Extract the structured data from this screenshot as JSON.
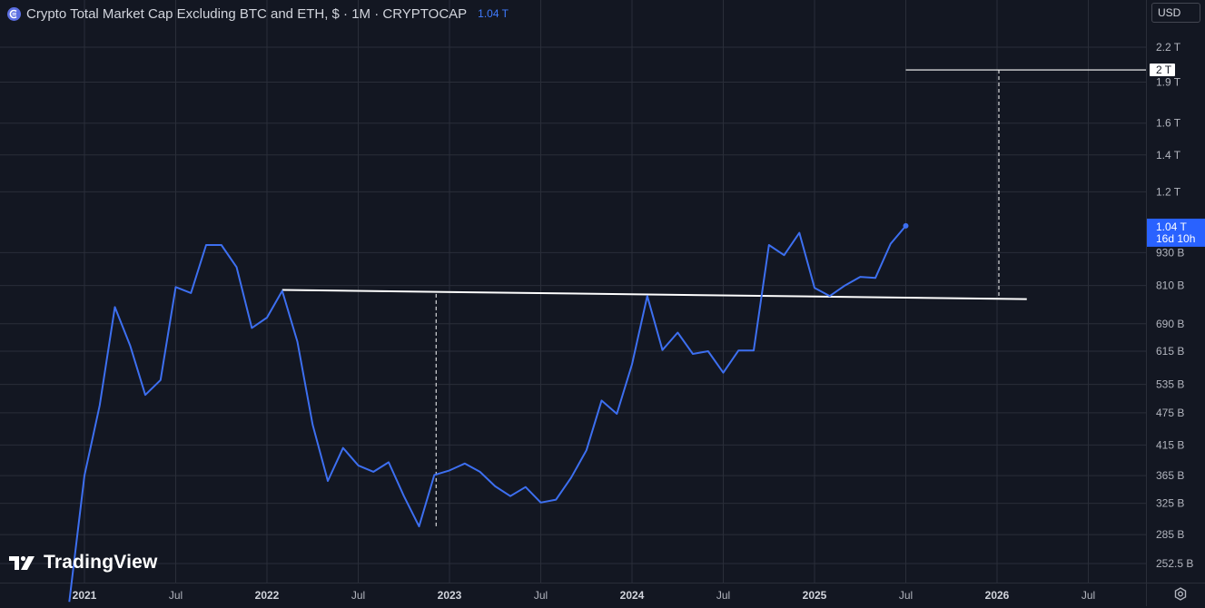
{
  "header": {
    "title": "Crypto Total Market Cap Excluding BTC and ETH, $ · 1M · CRYPTOCAP",
    "last_value": "1.04 T"
  },
  "currency_selector": {
    "label": "USD"
  },
  "watermark": {
    "text": "TradingView",
    "icon": "tradingview-logo-icon"
  },
  "price_label": {
    "value": "1.04 T",
    "countdown": "16d 10h"
  },
  "target_label": "2 T",
  "colors": {
    "background": "#131722",
    "grid": "#2a2e39",
    "series": "#3d6ff0",
    "price_label_bg": "#2962ff",
    "drawing": "#ffffff",
    "axis_text": "#b2b5be"
  },
  "chart_data": {
    "type": "line",
    "title": "Crypto Total Market Cap Excluding BTC and ETH, $ · 1M · CRYPTOCAP",
    "scale": "log",
    "ylim_billion": [
      237,
      2600
    ],
    "y_ticks": [
      {
        "label": "2.2 T",
        "value": 2200
      },
      {
        "label": "1.9 T",
        "value": 1900
      },
      {
        "label": "1.6 T",
        "value": 1600
      },
      {
        "label": "1.4 T",
        "value": 1400
      },
      {
        "label": "1.2 T",
        "value": 1200
      },
      {
        "label": "930 B",
        "value": 930
      },
      {
        "label": "810 B",
        "value": 810
      },
      {
        "label": "690 B",
        "value": 690
      },
      {
        "label": "615 B",
        "value": 615
      },
      {
        "label": "535 B",
        "value": 535
      },
      {
        "label": "475 B",
        "value": 475
      },
      {
        "label": "415 B",
        "value": 415
      },
      {
        "label": "365 B",
        "value": 365
      },
      {
        "label": "325 B",
        "value": 325
      },
      {
        "label": "285 B",
        "value": 285
      },
      {
        "label": "252.5 B",
        "value": 252.5
      }
    ],
    "x_ticks": [
      {
        "label": "2021",
        "value": "2021-01",
        "major": true
      },
      {
        "label": "Jul",
        "value": "2021-07",
        "major": false
      },
      {
        "label": "2022",
        "value": "2022-01",
        "major": true
      },
      {
        "label": "Jul",
        "value": "2022-07",
        "major": false
      },
      {
        "label": "2023",
        "value": "2023-01",
        "major": true
      },
      {
        "label": "Jul",
        "value": "2023-07",
        "major": false
      },
      {
        "label": "2024",
        "value": "2024-01",
        "major": true
      },
      {
        "label": "Jul",
        "value": "2024-07",
        "major": false
      },
      {
        "label": "2025",
        "value": "2025-01",
        "major": true
      },
      {
        "label": "Jul",
        "value": "2025-07",
        "major": false
      },
      {
        "label": "2026",
        "value": "2026-01",
        "major": true
      },
      {
        "label": "Jul",
        "value": "2026-07",
        "major": false
      }
    ],
    "x_range": [
      "2020-07",
      "2027-01"
    ],
    "series": [
      {
        "points": [
          [
            "2020-12",
            215
          ],
          [
            "2021-01",
            365
          ],
          [
            "2021-02",
            490
          ],
          [
            "2021-03",
            740
          ],
          [
            "2021-04",
            630
          ],
          [
            "2021-05",
            512
          ],
          [
            "2021-06",
            545
          ],
          [
            "2021-07",
            805
          ],
          [
            "2021-08",
            785
          ],
          [
            "2021-09",
            960
          ],
          [
            "2021-10",
            960
          ],
          [
            "2021-11",
            875
          ],
          [
            "2021-12",
            678
          ],
          [
            "2022-01",
            708
          ],
          [
            "2022-02",
            792
          ],
          [
            "2022-03",
            640
          ],
          [
            "2022-04",
            452
          ],
          [
            "2022-05",
            357
          ],
          [
            "2022-06",
            410
          ],
          [
            "2022-07",
            381
          ],
          [
            "2022-08",
            371
          ],
          [
            "2022-09",
            386
          ],
          [
            "2022-10",
            335
          ],
          [
            "2022-11",
            295
          ],
          [
            "2022-12",
            366
          ],
          [
            "2023-01",
            373
          ],
          [
            "2023-02",
            384
          ],
          [
            "2023-03",
            371
          ],
          [
            "2023-04",
            349
          ],
          [
            "2023-05",
            335
          ],
          [
            "2023-06",
            348
          ],
          [
            "2023-07",
            326
          ],
          [
            "2023-08",
            330
          ],
          [
            "2023-09",
            362
          ],
          [
            "2023-10",
            406
          ],
          [
            "2023-11",
            500
          ],
          [
            "2023-12",
            473
          ],
          [
            "2024-01",
            582
          ],
          [
            "2024-02",
            775
          ],
          [
            "2024-03",
            618
          ],
          [
            "2024-04",
            665
          ],
          [
            "2024-05",
            608
          ],
          [
            "2024-06",
            615
          ],
          [
            "2024-07",
            562
          ],
          [
            "2024-08",
            617
          ],
          [
            "2024-09",
            617
          ],
          [
            "2024-10",
            960
          ],
          [
            "2024-11",
            920
          ],
          [
            "2024-12",
            1010
          ],
          [
            "2025-01",
            802
          ],
          [
            "2025-02",
            775
          ],
          [
            "2025-03",
            810
          ],
          [
            "2025-04",
            840
          ],
          [
            "2025-05",
            836
          ],
          [
            "2025-06",
            965
          ],
          [
            "2025-07",
            1040
          ]
        ]
      }
    ],
    "annotations": {
      "resistance_line": {
        "from": [
          "2022-02",
          795
        ],
        "to": [
          "2026-02",
          765
        ]
      },
      "target_level": {
        "value_billion": 2000,
        "from": "2025-07",
        "to": "2026-10"
      },
      "measure_lines": [
        {
          "x": "2022-12",
          "from_billion": 782,
          "to_billion": 292
        },
        {
          "x": "2026-01",
          "from_billion": 2000,
          "to_billion": 767
        }
      ]
    }
  }
}
